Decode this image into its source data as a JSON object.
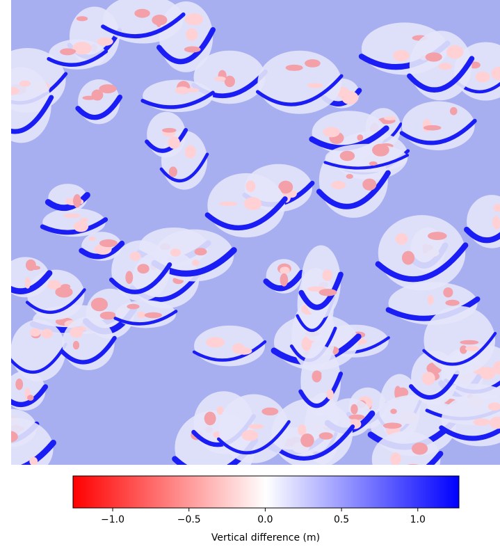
{
  "chart_data": {
    "type": "heatmap",
    "colorbar_label": "Vertical difference (m)",
    "colors": [
      "#ff0000",
      "#ffffff",
      "#0000ff"
    ],
    "clim": [
      -1.26,
      1.27
    ],
    "cticks": [
      {
        "value": -1,
        "label": "−1.0"
      },
      {
        "value": -0.5,
        "label": "−0.5"
      },
      {
        "value": 0,
        "label": "0.0"
      },
      {
        "value": 0.5,
        "label": "0.5"
      },
      {
        "value": 1,
        "label": "1.0"
      }
    ]
  }
}
